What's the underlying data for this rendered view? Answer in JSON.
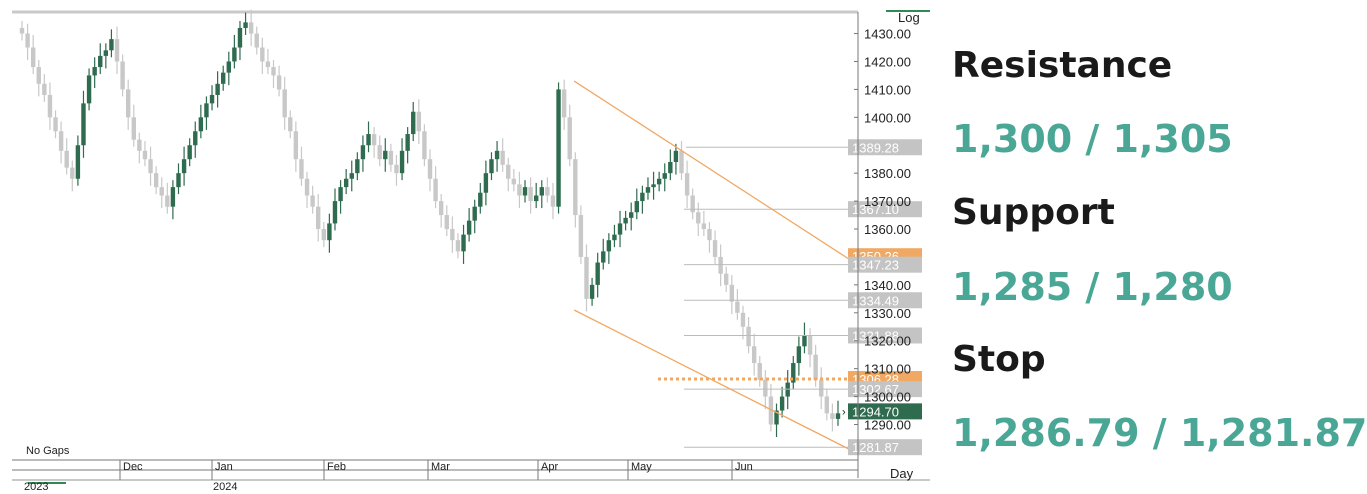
{
  "levels_panel": {
    "resistance_label": "Resistance",
    "resistance_value": "1,300 / 1,305",
    "support_label": "Support",
    "support_value": "1,285 / 1,280",
    "stop_label": "Stop",
    "stop_value": "1,286.79 / 1,281.87",
    "value_color": "#4aa795"
  },
  "chart_data": {
    "type": "candlestick",
    "scale_label": "Log",
    "period_label": "Day",
    "gaps_label": "No Gaps",
    "ylim": [
      1278,
      1437
    ],
    "y_ticks": [
      "1290.00",
      "1300.00",
      "1310.00",
      "1320.00",
      "1330.00",
      "1340.00",
      "1360.00",
      "1370.00",
      "1380.00",
      "1400.00",
      "1410.00",
      "1420.00",
      "1430.00"
    ],
    "month_labels": [
      "Dec",
      "Jan",
      "Feb",
      "Mar",
      "Apr",
      "May",
      "Jun"
    ],
    "year_labels": [
      "2023",
      "2024"
    ],
    "colors": {
      "up": "#2e6b4f",
      "down": "#c8c8c8",
      "channel": "#f0a862",
      "highlight": "#f0a862",
      "last_price": "#2e6b4f",
      "level_box": "#c4c4c4"
    },
    "price_levels": [
      {
        "value": 1389.28,
        "label": "1389.28",
        "kind": "grey"
      },
      {
        "value": 1367.1,
        "label": "1367.10",
        "kind": "grey"
      },
      {
        "value": 1350.26,
        "label": "1350.26",
        "kind": "orange"
      },
      {
        "value": 1347.23,
        "label": "1347.23",
        "kind": "grey"
      },
      {
        "value": 1334.49,
        "label": "1334.49",
        "kind": "grey"
      },
      {
        "value": 1321.88,
        "label": "1321.88",
        "kind": "grey"
      },
      {
        "value": 1306.28,
        "label": "1306.28",
        "kind": "orange"
      },
      {
        "value": 1302.67,
        "label": "1302.67",
        "kind": "grey"
      },
      {
        "value": 1294.7,
        "label": "1294.70",
        "kind": "last"
      },
      {
        "value": 1281.87,
        "label": "1281.87",
        "kind": "grey"
      }
    ],
    "dotted_level": 1306.28,
    "channel": {
      "upper": [
        [
          0.67,
          1413
        ],
        [
          1.0,
          1349
        ]
      ],
      "lower": [
        [
          0.67,
          1331
        ],
        [
          1.0,
          1281
        ]
      ]
    },
    "closes": [
      1430,
      1425,
      1418,
      1412,
      1408,
      1400,
      1395,
      1388,
      1382,
      1378,
      1390,
      1405,
      1415,
      1418,
      1422,
      1424,
      1428,
      1420,
      1410,
      1400,
      1392,
      1388,
      1385,
      1380,
      1375,
      1372,
      1368,
      1375,
      1380,
      1385,
      1390,
      1395,
      1400,
      1405,
      1408,
      1412,
      1416,
      1420,
      1425,
      1432,
      1434,
      1430,
      1425,
      1420,
      1418,
      1415,
      1410,
      1400,
      1395,
      1385,
      1378,
      1372,
      1368,
      1360,
      1356,
      1362,
      1370,
      1375,
      1378,
      1380,
      1385,
      1390,
      1394,
      1390,
      1385,
      1388,
      1383,
      1380,
      1388,
      1394,
      1402,
      1395,
      1385,
      1378,
      1370,
      1365,
      1360,
      1356,
      1352,
      1358,
      1363,
      1368,
      1373,
      1380,
      1385,
      1388,
      1383,
      1378,
      1376,
      1372,
      1375,
      1370,
      1372,
      1375,
      1372,
      1368,
      1410,
      1400,
      1385,
      1365,
      1350,
      1335,
      1340,
      1348,
      1352,
      1356,
      1358,
      1362,
      1364,
      1366,
      1370,
      1373,
      1375,
      1376,
      1378,
      1380,
      1384,
      1388,
      1380,
      1372,
      1366,
      1362,
      1360,
      1356,
      1350,
      1344,
      1340,
      1334,
      1330,
      1325,
      1318,
      1312,
      1306,
      1300,
      1290,
      1295,
      1300,
      1305,
      1312,
      1318,
      1322,
      1315,
      1306,
      1300,
      1294,
      1292,
      1294
    ]
  }
}
